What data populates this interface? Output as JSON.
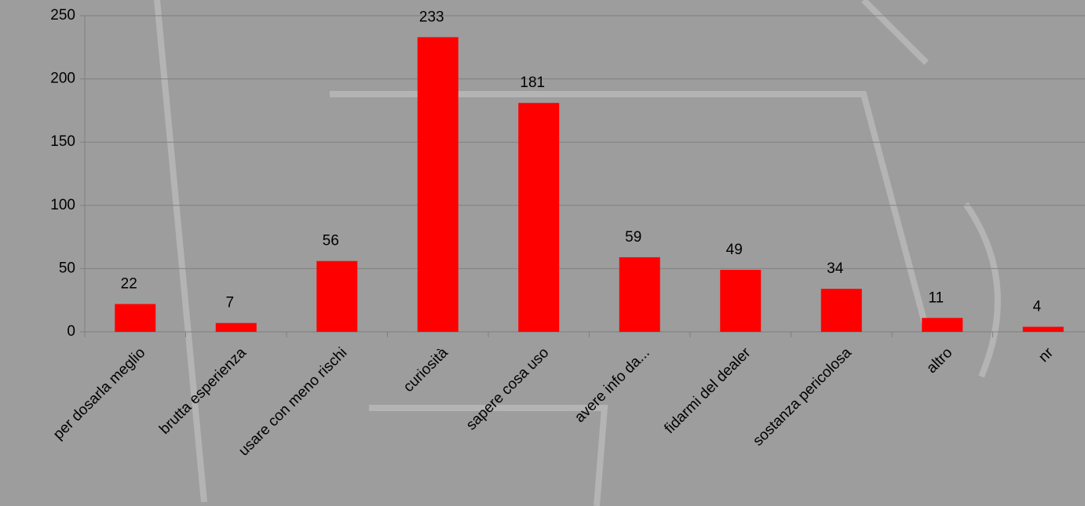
{
  "chart_data": {
    "type": "bar",
    "categories": [
      "per dosarla meglio",
      "brutta esperienza",
      "usare con meno rischi",
      "curiosità",
      "sapere cosa uso",
      "avere info da...",
      "fidarmi del dealer",
      "sostanza pericolosa",
      "altro",
      "nr"
    ],
    "values": [
      22,
      7,
      56,
      233,
      181,
      59,
      49,
      34,
      11,
      4
    ],
    "color": "#ff0000",
    "ylim": [
      0,
      250
    ],
    "yticks": [
      0,
      50,
      100,
      150,
      200,
      250
    ],
    "grid": true
  }
}
